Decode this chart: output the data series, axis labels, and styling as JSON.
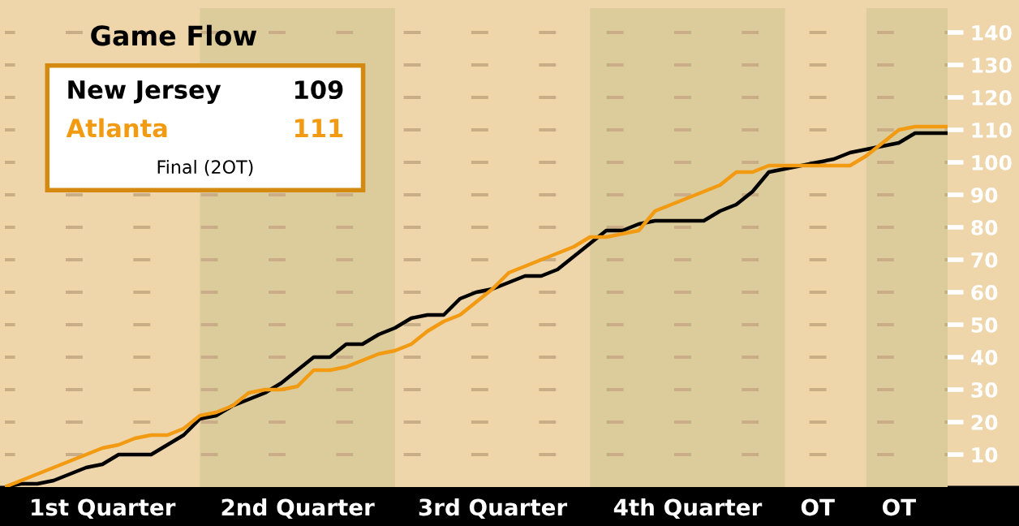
{
  "chart_data": {
    "type": "line",
    "title": "Game Flow",
    "categories": [
      null,
      null,
      null,
      null,
      null,
      null,
      "1st Quarter",
      null,
      null,
      null,
      null,
      null,
      null,
      null,
      null,
      null,
      null,
      null,
      "2nd Quarter",
      null,
      null,
      null,
      null,
      null,
      null,
      null,
      null,
      null,
      null,
      null,
      "3rd Quarter",
      null,
      null,
      null,
      null,
      null,
      null,
      null,
      null,
      null,
      null,
      null,
      "4th Quarter",
      null,
      null,
      null,
      null,
      null,
      null,
      null,
      "OT",
      null,
      null,
      null,
      null,
      "OT",
      null,
      null,
      null
    ],
    "ylim": [
      0,
      147.5
    ],
    "yticks": [
      10,
      20,
      30,
      40,
      50,
      60,
      70,
      80,
      90,
      100,
      110,
      120,
      130,
      140
    ],
    "tick_labels": "xy",
    "grid": "y",
    "annotations": [
      "109",
      "111",
      "Final (2OT)"
    ],
    "series": [
      {
        "name": "New Jersey",
        "color": "#000000",
        "values": [
          0,
          1,
          1,
          2,
          4,
          6,
          7,
          10,
          10,
          10,
          13,
          16,
          21,
          22,
          25,
          27,
          29,
          32,
          36,
          40,
          40,
          44,
          44,
          47,
          49,
          52,
          53,
          53,
          58,
          60,
          61,
          63,
          65,
          65,
          67,
          71,
          75,
          79,
          79,
          81,
          82,
          82,
          82,
          82,
          85,
          87,
          91,
          97,
          98,
          99,
          100,
          101,
          103,
          104,
          105,
          106,
          109,
          109,
          109
        ]
      },
      {
        "name": "Atlanta",
        "color": "#f29b12",
        "values": [
          0,
          2,
          4,
          6,
          8,
          10,
          12,
          13,
          15,
          16,
          16,
          18,
          22,
          23,
          25,
          29,
          30,
          30,
          31,
          36,
          36,
          37,
          39,
          41,
          42,
          44,
          48,
          51,
          53,
          57,
          61,
          66,
          68,
          70,
          72,
          74,
          77,
          77,
          78,
          79,
          85,
          87,
          89,
          91,
          93,
          97,
          97,
          99,
          99,
          99,
          99,
          99,
          99,
          102,
          106,
          110,
          111,
          111,
          111
        ]
      }
    ]
  }
}
